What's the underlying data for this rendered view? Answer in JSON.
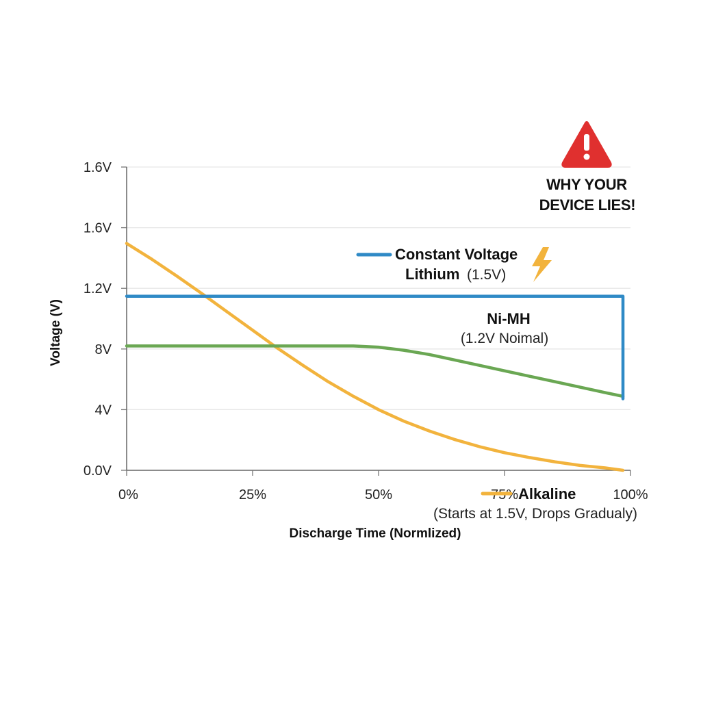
{
  "chart_data": {
    "type": "line",
    "xlabel": "Discharge Time (Normlized)",
    "ylabel": "Voltage (V)",
    "x_ticks": [
      "0%",
      "25%",
      "50%",
      "75%",
      "100%"
    ],
    "y_ticks": [
      "0.0V",
      "4V",
      "8V",
      "1.2V",
      "1.6V",
      "1.6V"
    ],
    "xlim": [
      0,
      100
    ],
    "ylim": [
      0,
      5
    ],
    "y_units": "gridline index",
    "grid": true,
    "warning": {
      "icon": "warning-triangle-icon",
      "line1": "WHY YOUR",
      "line2": "DEVICE LIES!"
    },
    "series": [
      {
        "name": "Alkaline",
        "caption": "(Starts at 1.5V, Drops Gradualy)",
        "color": "#f2b33d",
        "points": [
          [
            0,
            3.74
          ],
          [
            5,
            3.48
          ],
          [
            10,
            3.2
          ],
          [
            15,
            2.91
          ],
          [
            20,
            2.61
          ],
          [
            25,
            2.31
          ],
          [
            30,
            2.01
          ],
          [
            35,
            1.73
          ],
          [
            40,
            1.46
          ],
          [
            45,
            1.22
          ],
          [
            50,
            1.0
          ],
          [
            55,
            0.81
          ],
          [
            60,
            0.65
          ],
          [
            65,
            0.51
          ],
          [
            70,
            0.39
          ],
          [
            75,
            0.29
          ],
          [
            80,
            0.21
          ],
          [
            85,
            0.14
          ],
          [
            90,
            0.08
          ],
          [
            95,
            0.04
          ],
          [
            98.5,
            0.0
          ]
        ]
      },
      {
        "name": "Constant Voltage",
        "name_line2": "Lithium",
        "caption": "(1.5V)",
        "color": "#2f8ac6",
        "icon": "lightning-bolt-icon",
        "points": [
          [
            0,
            2.87
          ],
          [
            98.5,
            2.87
          ],
          [
            98.5,
            1.18
          ]
        ]
      },
      {
        "name": "Ni-MH",
        "caption": "(1.2V Noimal)",
        "color": "#6aa753",
        "points": [
          [
            0,
            2.05
          ],
          [
            10,
            2.05
          ],
          [
            20,
            2.05
          ],
          [
            30,
            2.05
          ],
          [
            40,
            2.05
          ],
          [
            45,
            2.05
          ],
          [
            50,
            2.03
          ],
          [
            55,
            1.98
          ],
          [
            60,
            1.91
          ],
          [
            65,
            1.82
          ],
          [
            70,
            1.73
          ],
          [
            75,
            1.64
          ],
          [
            80,
            1.55
          ],
          [
            85,
            1.46
          ],
          [
            90,
            1.37
          ],
          [
            95,
            1.28
          ],
          [
            98.5,
            1.22
          ]
        ]
      }
    ]
  }
}
